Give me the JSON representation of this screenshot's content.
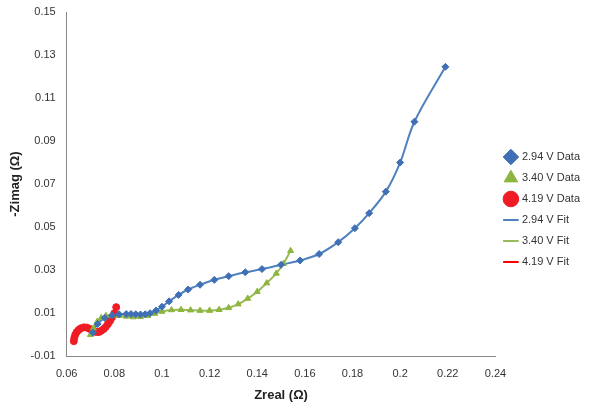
{
  "chart_data": {
    "type": "scatter",
    "x_label": "Zreal (Ω)",
    "y_label": "-Zimag (Ω)",
    "xlim": [
      0.06,
      0.24
    ],
    "xticks": [
      0.06,
      0.08,
      0.1,
      0.12,
      0.14,
      0.16,
      0.18,
      0.2,
      0.22,
      0.24
    ],
    "ylim": [
      -0.01,
      0.15
    ],
    "yticks": [
      -0.01,
      0.01,
      0.03,
      0.05,
      0.07,
      0.09,
      0.11,
      0.13,
      0.15
    ],
    "grid": false,
    "legend": "right",
    "series": [
      {
        "name": "2.94 V Data",
        "type": "scatter",
        "marker": "diamond",
        "color": "#3f6fb5",
        "x": [
          0.071,
          0.073,
          0.076,
          0.079,
          0.082,
          0.085,
          0.087,
          0.089,
          0.091,
          0.093,
          0.095,
          0.0975,
          0.1,
          0.103,
          0.107,
          0.111,
          0.116,
          0.122,
          0.128,
          0.135,
          0.142,
          0.15,
          0.158,
          0.166,
          0.174,
          0.181,
          0.187,
          0.194,
          0.2,
          0.206,
          0.219
        ],
        "values": [
          0.001,
          0.005,
          0.0078,
          0.009,
          0.0095,
          0.0096,
          0.0096,
          0.0095,
          0.0094,
          0.0095,
          0.01,
          0.0112,
          0.013,
          0.0155,
          0.0185,
          0.021,
          0.0232,
          0.0255,
          0.0272,
          0.029,
          0.0305,
          0.0325,
          0.0345,
          0.0375,
          0.043,
          0.0495,
          0.0565,
          0.0665,
          0.08,
          0.099,
          0.1245
        ]
      },
      {
        "name": "2.94 V Fit",
        "type": "line",
        "line_style": "solid",
        "color": "#4f81bd",
        "x": [
          0.071,
          0.073,
          0.076,
          0.079,
          0.082,
          0.085,
          0.087,
          0.089,
          0.091,
          0.093,
          0.095,
          0.0975,
          0.1,
          0.103,
          0.107,
          0.111,
          0.116,
          0.122,
          0.128,
          0.135,
          0.142,
          0.15,
          0.158,
          0.166,
          0.174,
          0.181,
          0.187,
          0.194,
          0.2,
          0.206,
          0.219
        ],
        "values": [
          0.001,
          0.005,
          0.0078,
          0.009,
          0.0095,
          0.0096,
          0.0096,
          0.0095,
          0.0094,
          0.0095,
          0.01,
          0.0112,
          0.013,
          0.0155,
          0.0185,
          0.021,
          0.0232,
          0.0255,
          0.0272,
          0.029,
          0.0305,
          0.0325,
          0.0345,
          0.0375,
          0.043,
          0.0495,
          0.0565,
          0.0665,
          0.08,
          0.099,
          0.1245
        ]
      },
      {
        "name": "3.40 V Data",
        "type": "scatter",
        "marker": "triangle",
        "color": "#8db53f",
        "x": [
          0.07,
          0.0712,
          0.0728,
          0.0745,
          0.0765,
          0.079,
          0.082,
          0.085,
          0.088,
          0.091,
          0.094,
          0.097,
          0.1,
          0.104,
          0.108,
          0.112,
          0.116,
          0.12,
          0.124,
          0.128,
          0.132,
          0.136,
          0.14,
          0.144,
          0.148,
          0.151,
          0.154
        ],
        "values": [
          0.0,
          0.003,
          0.006,
          0.0078,
          0.0088,
          0.009,
          0.0088,
          0.0085,
          0.0082,
          0.0083,
          0.0088,
          0.0098,
          0.0108,
          0.0115,
          0.0116,
          0.0114,
          0.0112,
          0.0112,
          0.0116,
          0.0125,
          0.0142,
          0.0168,
          0.02,
          0.024,
          0.0285,
          0.033,
          0.039
        ]
      },
      {
        "name": "3.40 V Fit",
        "type": "line",
        "line_style": "solid",
        "color": "#9bbb59",
        "x": [
          0.07,
          0.0712,
          0.0728,
          0.0745,
          0.0765,
          0.079,
          0.082,
          0.085,
          0.088,
          0.091,
          0.094,
          0.097,
          0.1,
          0.104,
          0.108,
          0.112,
          0.116,
          0.12,
          0.124,
          0.128,
          0.132,
          0.136,
          0.14,
          0.144,
          0.148,
          0.151,
          0.154
        ],
        "values": [
          0.0,
          0.003,
          0.006,
          0.0078,
          0.0088,
          0.009,
          0.0088,
          0.0085,
          0.0082,
          0.0083,
          0.0088,
          0.0098,
          0.0108,
          0.0115,
          0.0116,
          0.0114,
          0.0112,
          0.0112,
          0.0116,
          0.0125,
          0.0142,
          0.0168,
          0.02,
          0.024,
          0.0285,
          0.033,
          0.039
        ]
      },
      {
        "name": "4.19 V Data",
        "type": "scatter",
        "marker": "circle",
        "color": "#ee1c25",
        "x": [
          0.063,
          0.0632,
          0.0636,
          0.0642,
          0.065,
          0.066,
          0.0672,
          0.0684,
          0.0695,
          0.0706,
          0.0716,
          0.0726,
          0.0736,
          0.0745,
          0.0755,
          0.0764,
          0.0773,
          0.0782,
          0.079,
          0.08,
          0.0808
        ],
        "values": [
          -0.003,
          -0.0015,
          0.0,
          0.0012,
          0.0022,
          0.003,
          0.0034,
          0.0033,
          0.0028,
          0.0021,
          0.0015,
          0.0012,
          0.0013,
          0.0018,
          0.0026,
          0.0036,
          0.0049,
          0.0064,
          0.008,
          0.01,
          0.0128
        ]
      },
      {
        "name": "4.19 V Fit",
        "type": "line",
        "line_style": "solid",
        "color": "#ff0000",
        "x": [
          0.063,
          0.0632,
          0.0636,
          0.0642,
          0.065,
          0.066,
          0.0672,
          0.0684,
          0.0695,
          0.0706,
          0.0716,
          0.0726,
          0.0736,
          0.0745,
          0.0755,
          0.0764,
          0.0773,
          0.0782,
          0.079,
          0.08,
          0.0808
        ],
        "values": [
          -0.003,
          -0.0015,
          0.0,
          0.0012,
          0.0022,
          0.003,
          0.0034,
          0.0033,
          0.0028,
          0.0021,
          0.0015,
          0.0012,
          0.0013,
          0.0018,
          0.0026,
          0.0036,
          0.0049,
          0.0064,
          0.008,
          0.01,
          0.0128
        ]
      }
    ]
  }
}
